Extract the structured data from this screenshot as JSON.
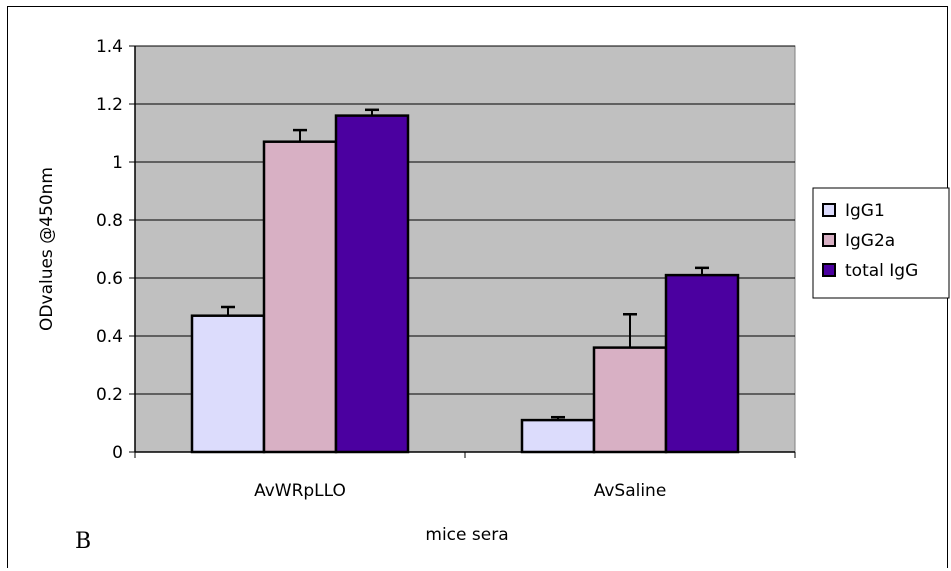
{
  "chart_data": {
    "type": "bar",
    "title": "",
    "xlabel": "mice sera",
    "ylabel": "ODvalues @450nm",
    "ylim": [
      0,
      1.4
    ],
    "yticks": [
      "0",
      "0.2",
      "0.4",
      "0.6",
      "0.8",
      "1",
      "1.2",
      "1.4"
    ],
    "categories": [
      "AvWRpLLO",
      "AvSaline"
    ],
    "series": [
      {
        "name": "IgG1",
        "values": [
          0.47,
          0.11
        ],
        "errors": [
          0.03,
          0.01
        ],
        "color": "#dcdcfc"
      },
      {
        "name": "IgG2a",
        "values": [
          1.07,
          0.36
        ],
        "errors": [
          0.04,
          0.115
        ],
        "color": "#d8b0c4"
      },
      {
        "name": "total IgG",
        "values": [
          1.16,
          0.61
        ],
        "errors": [
          0.02,
          0.025
        ],
        "color": "#4b00a0"
      }
    ],
    "grid": true,
    "plot_background": "#c0c0c0",
    "legend_position": "right",
    "panel_label": "B"
  }
}
